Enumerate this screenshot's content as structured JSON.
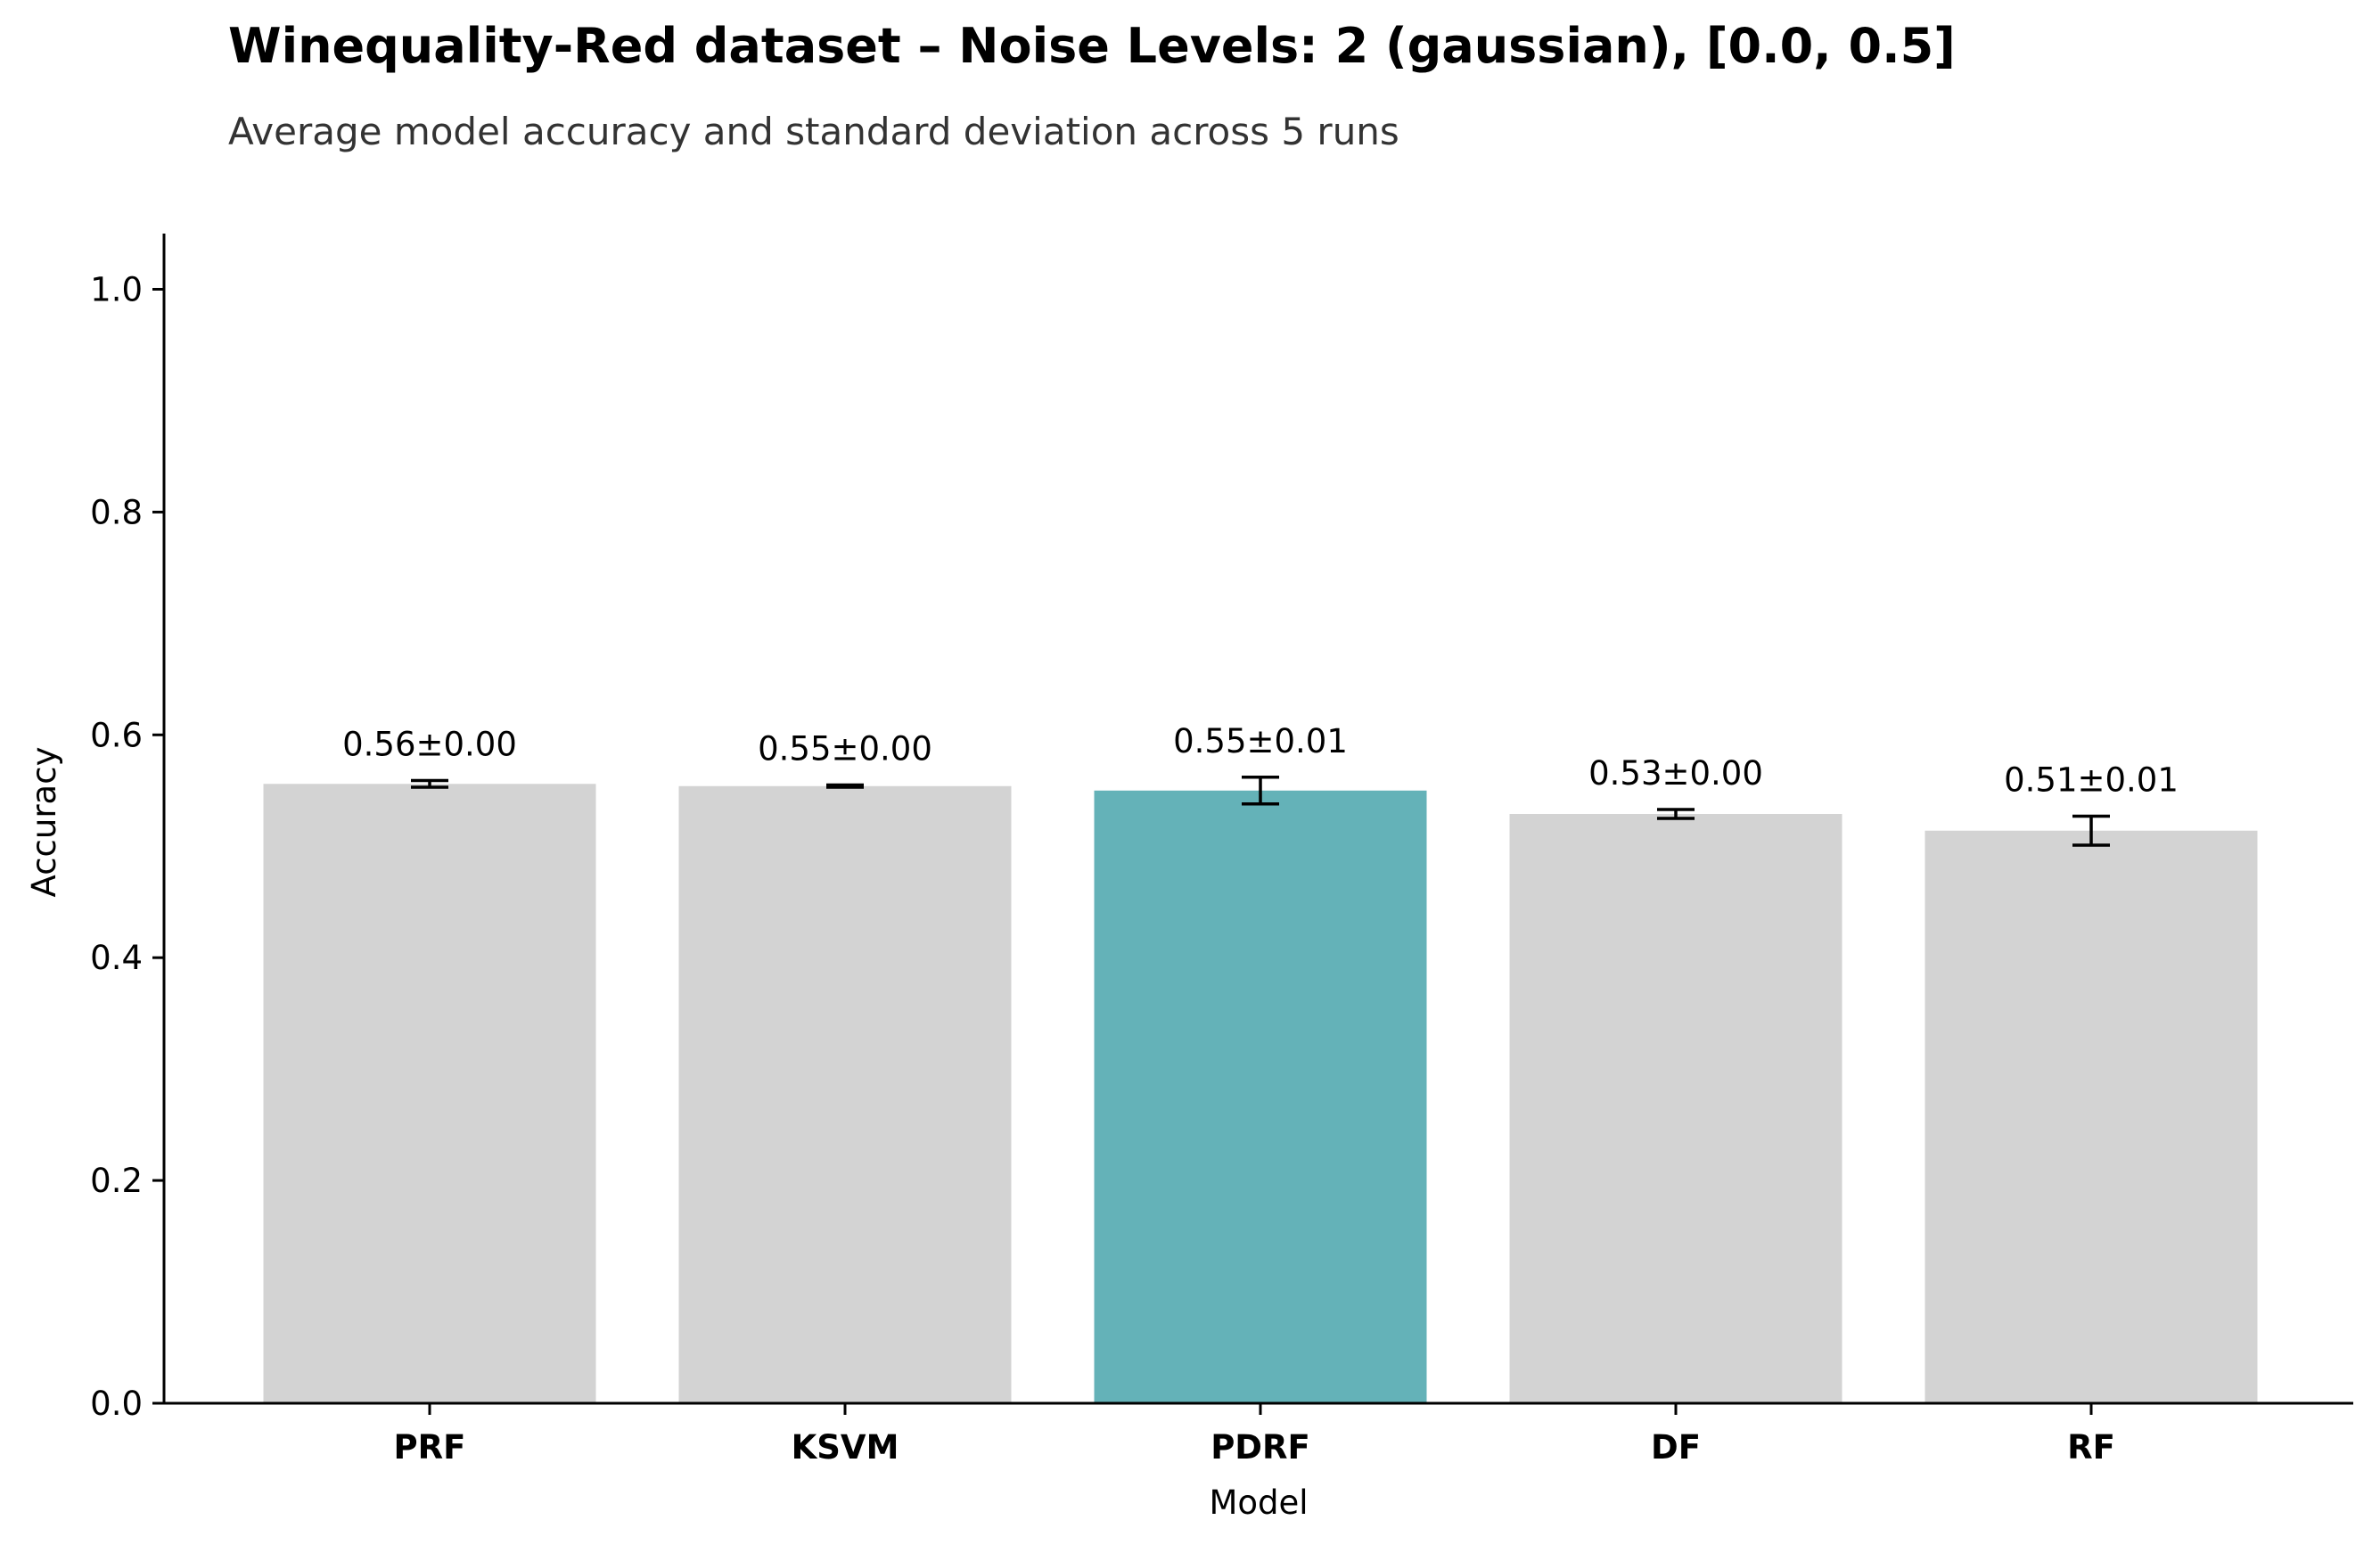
{
  "chart_data": {
    "type": "bar",
    "title": "Winequality-Red dataset – Noise Levels: 2 (gaussian), [0.0, 0.5]",
    "subtitle": "Average model accuracy and standard deviation across 5 runs",
    "xlabel": "Model",
    "ylabel": "Accuracy",
    "ylim": [
      0,
      1.05
    ],
    "yticks": [
      0.0,
      0.2,
      0.4,
      0.6,
      0.8,
      1.0
    ],
    "ytick_labels": [
      "0.0",
      "0.2",
      "0.4",
      "0.6",
      "0.8",
      "1.0"
    ],
    "categories": [
      "PRF",
      "KSVM",
      "PDRF",
      "DF",
      "RF"
    ],
    "values": [
      0.556,
      0.554,
      0.55,
      0.529,
      0.514
    ],
    "errors": [
      0.003,
      0.001,
      0.012,
      0.004,
      0.013
    ],
    "data_labels": [
      "0.56±0.00",
      "0.55±0.00",
      "0.55±0.01",
      "0.53±0.00",
      "0.51±0.01"
    ],
    "highlight": "PDRF",
    "colors": {
      "bar": "#d3d3d3",
      "highlight": "#64b2b8",
      "error_bar": "#000000",
      "axis": "#000000"
    },
    "grid": false,
    "legend": "none"
  }
}
